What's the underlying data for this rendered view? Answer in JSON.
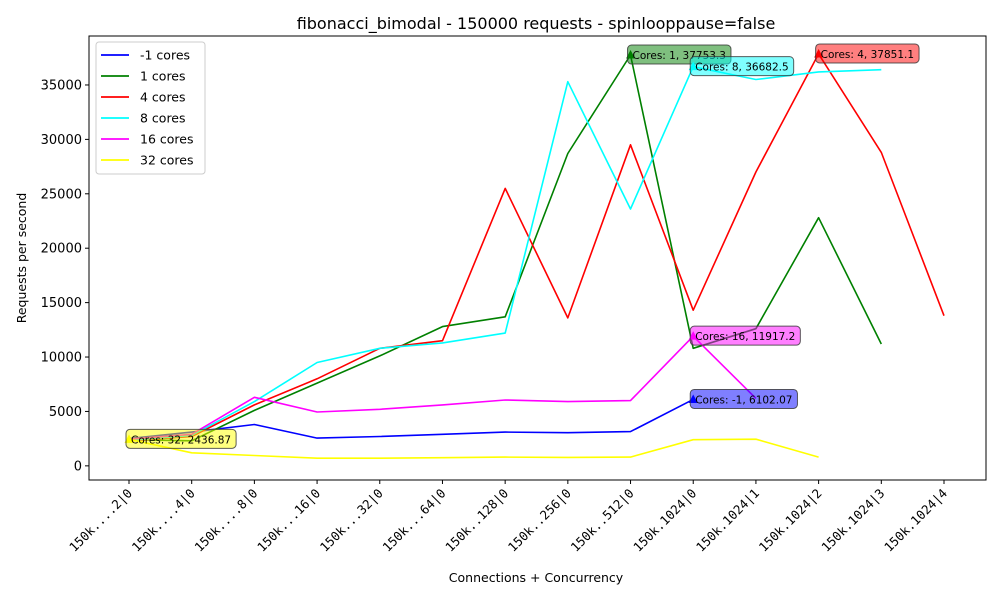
{
  "chart_data": {
    "type": "line",
    "title": "fibonacci_bimodal - 150000 requests - spinlooppause=false",
    "xlabel": "Connections + Concurrency",
    "ylabel": "Requests per second",
    "ylim": [
      -1300,
      39500
    ],
    "yticks": [
      0,
      5000,
      10000,
      15000,
      20000,
      25000,
      30000,
      35000
    ],
    "legend_position": "top-left",
    "categories": [
      "150k....2|0",
      "150k....4|0",
      "150k....8|0",
      "150k...16|0",
      "150k...32|0",
      "150k...64|0",
      "150k..128|0",
      "150k..256|0",
      "150k..512|0",
      "150k.1024|0",
      "150k.1024|1",
      "150k.1024|2",
      "150k.1024|3",
      "150k.1024|4"
    ],
    "series": [
      {
        "name": "-1 cores",
        "color": "#0000ff",
        "values": [
          2500,
          3100,
          3800,
          2550,
          2700,
          2900,
          3100,
          3050,
          3150,
          6102.07,
          null,
          null,
          null,
          null
        ]
      },
      {
        "name": "1 cores",
        "color": "#008000",
        "values": [
          2400,
          2300,
          5100,
          7600,
          10100,
          12800,
          13700,
          28700,
          37753.3,
          10800,
          12600,
          22800,
          11200,
          null
        ]
      },
      {
        "name": "4 cores",
        "color": "#ff0000",
        "values": [
          2300,
          2700,
          5600,
          8000,
          10800,
          11500,
          25500,
          13600,
          29500,
          14300,
          27000,
          37851.1,
          28800,
          13800
        ]
      },
      {
        "name": "8 cores",
        "color": "#00ffff",
        "values": [
          2350,
          2800,
          5900,
          9500,
          10800,
          11300,
          12200,
          35300,
          23600,
          36682.5,
          35500,
          36200,
          36400,
          null
        ]
      },
      {
        "name": "16 cores",
        "color": "#ff00ff",
        "values": [
          2450,
          2900,
          6300,
          4950,
          5200,
          5600,
          6050,
          5900,
          6000,
          11917.2,
          6200,
          null,
          null,
          null
        ]
      },
      {
        "name": "32 cores",
        "color": "#ffff00",
        "values": [
          2436.87,
          1200,
          950,
          700,
          700,
          750,
          800,
          780,
          800,
          2400,
          2450,
          800,
          null,
          null
        ]
      }
    ],
    "annotations": [
      {
        "text": "Cores: 32, 2436.87",
        "series": 5,
        "x_index": 0,
        "y": 2436.87,
        "bg": "#ffff00"
      },
      {
        "text": "Cores: 1, 37753.3",
        "series": 1,
        "x_index": 8,
        "y": 37753.3,
        "bg": "#008000"
      },
      {
        "text": "Cores: 8, 36682.5",
        "series": 3,
        "x_index": 9,
        "y": 36682.5,
        "bg": "#00ffff"
      },
      {
        "text": "Cores: 4, 37851.1",
        "series": 2,
        "x_index": 11,
        "y": 37851.1,
        "bg": "#ff0000"
      },
      {
        "text": "Cores: 16, 11917.2",
        "series": 4,
        "x_index": 9,
        "y": 11917.2,
        "bg": "#ff00ff"
      },
      {
        "text": "Cores: -1, 6102.07",
        "series": 0,
        "x_index": 9,
        "y": 6102.07,
        "bg": "#0000ff"
      }
    ]
  }
}
